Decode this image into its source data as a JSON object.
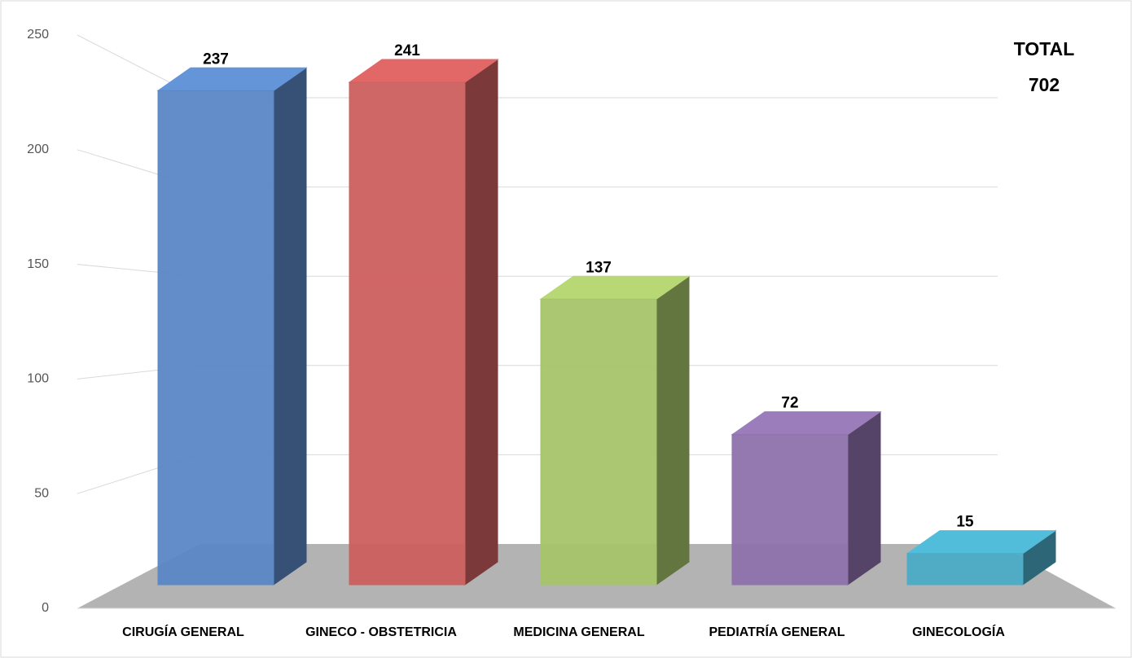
{
  "chart_data": {
    "type": "bar",
    "categories": [
      "CIRUGÍA GENERAL",
      "GINECO - OBSTETRICIA",
      "MEDICINA GENERAL",
      "PEDIATRÍA GENERAL",
      "GINECOLOGÍA"
    ],
    "values": [
      237,
      241,
      137,
      72,
      15
    ],
    "colors": [
      "#5b87c5",
      "#cd5f5f",
      "#a6c46a",
      "#8d72ab",
      "#4bacc6"
    ],
    "ylim": [
      0,
      250
    ],
    "yticks": [
      0,
      50,
      100,
      150,
      200,
      250
    ],
    "grid": true,
    "annotation": {
      "label": "TOTAL",
      "value": 702
    }
  }
}
